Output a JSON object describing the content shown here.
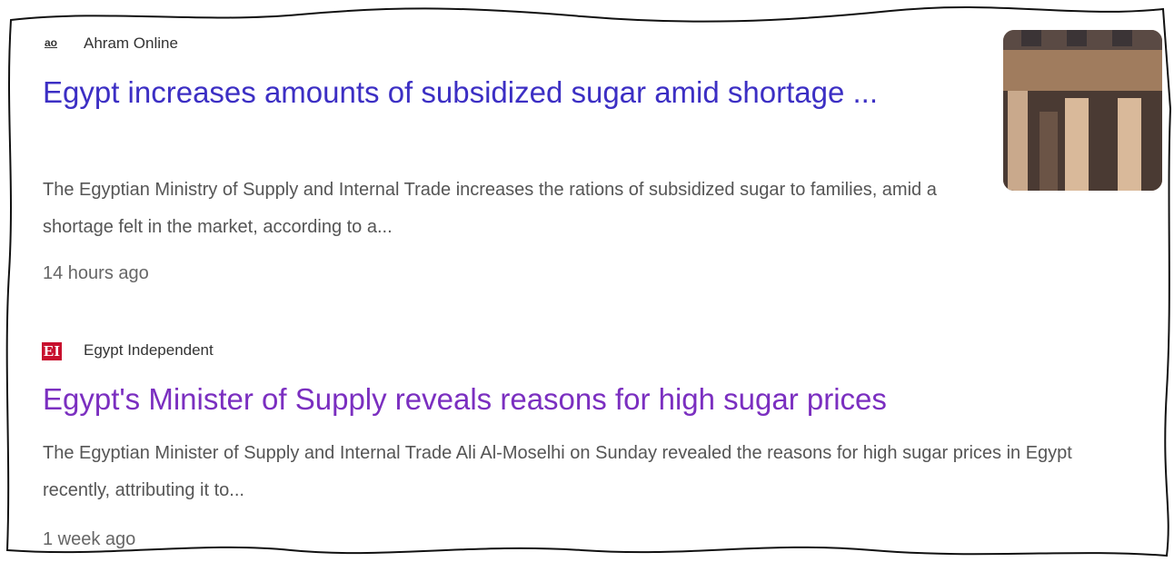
{
  "results": [
    {
      "icon": "ao",
      "source": "Ahram Online",
      "title": "Egypt increases amounts of subsidized sugar amid shortage ...",
      "snippet": "The Egyptian Ministry of Supply and Internal Trade increases the rations of subsidized sugar to families, amid a shortage felt in the market, according to a...",
      "time": "14 hours ago"
    },
    {
      "icon": "EI",
      "source": "Egypt Independent",
      "title": "Egypt's Minister of Supply reveals reasons for high sugar prices",
      "snippet": "The Egyptian Minister of Supply and Internal Trade Ali Al-Moselhi on Sunday revealed the reasons for high sugar prices in Egypt recently, attributing it to...",
      "time": "1 week ago"
    }
  ]
}
